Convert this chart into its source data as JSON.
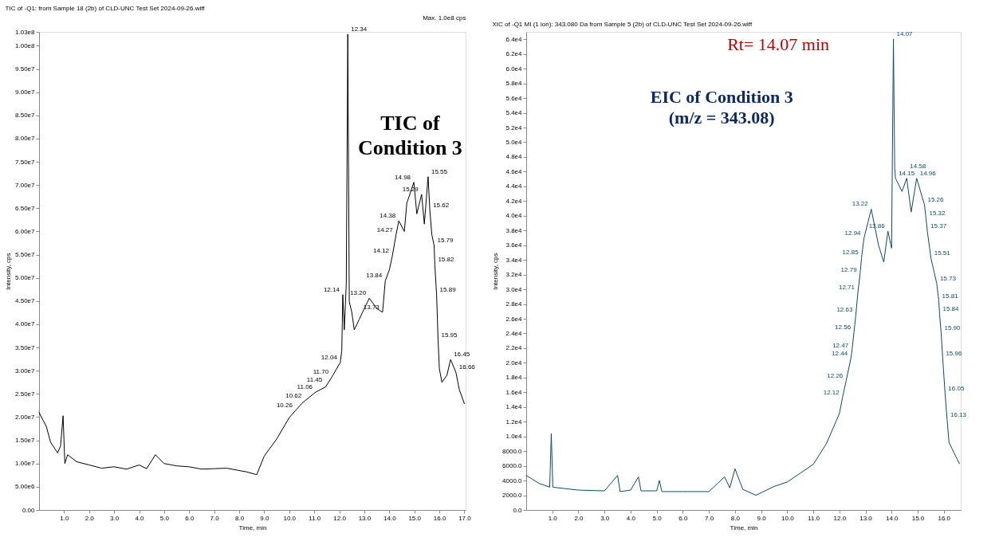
{
  "chart_data": [
    {
      "type": "line",
      "title": "TIC of -Q1: from Sample 18 (2b) of CLD-UNC Test Set 2024-09-26.wiff",
      "xlabel": "Time, min",
      "ylabel": "Intensity, cps",
      "x": [
        0,
        0.29,
        0.46,
        0.74,
        0.86,
        0.96,
        1.03,
        1.14,
        1.5,
        2.0,
        2.5,
        3.0,
        3.5,
        4.0,
        4.3,
        4.65,
        5.0,
        5.5,
        6.0,
        6.5,
        7.0,
        7.5,
        8.0,
        8.3,
        8.7,
        9.0,
        9.5,
        10.0,
        10.26,
        10.5,
        10.62,
        11.06,
        11.45,
        11.7,
        12.04,
        12.1,
        12.14,
        12.2,
        12.28,
        12.34,
        12.4,
        12.5,
        12.6,
        12.8,
        13.0,
        13.2,
        13.5,
        13.73,
        13.84,
        14.0,
        14.12,
        14.27,
        14.38,
        14.6,
        14.7,
        14.98,
        15.1,
        15.29,
        15.4,
        15.55,
        15.62,
        15.7,
        15.79,
        15.82,
        15.89,
        15.95,
        16.0,
        16.1,
        16.3,
        16.45,
        16.66,
        16.8,
        17.0
      ],
      "series": [
        {
          "color": "#000000",
          "values": [
            21000000,
            18000000,
            14600000,
            12300000,
            13800000,
            20300000,
            10000000,
            11900000,
            10400000,
            9700000,
            9000000,
            9300000,
            8800000,
            9700000,
            8900000,
            11900000,
            10000000,
            9500000,
            9300000,
            8800000,
            8900000,
            9000000,
            8500000,
            8200000,
            7600000,
            11600000,
            15300000,
            19900000,
            21500000,
            22900000,
            23500000,
            25400000,
            26500000,
            28600000,
            31800000,
            34300000,
            46400000,
            38800000,
            48700000,
            102500000,
            44900000,
            42600000,
            38800000,
            41100000,
            43400000,
            45600000,
            43400000,
            42600000,
            49400000,
            51700000,
            54700000,
            59300000,
            62300000,
            60000000,
            66100000,
            70600000,
            63800000,
            68000000,
            61600000,
            71800000,
            64600000,
            59300000,
            57000000,
            52800000,
            46400000,
            36600000,
            30500000,
            27500000,
            29000000,
            32400000,
            29700000,
            25900000,
            22900000
          ]
        }
      ],
      "xlim": [
        0,
        17.05
      ],
      "ylim": [
        0,
        103000000
      ],
      "xticks": [
        {
          "value": 1,
          "label": "1.0"
        },
        {
          "value": 2,
          "label": "2.0"
        },
        {
          "value": 3,
          "label": "3.0"
        },
        {
          "value": 4,
          "label": "4.0"
        },
        {
          "value": 5,
          "label": "5.0"
        },
        {
          "value": 6,
          "label": "6.0"
        },
        {
          "value": 7,
          "label": "7.0"
        },
        {
          "value": 8,
          "label": "8.0"
        },
        {
          "value": 9,
          "label": "9.0"
        },
        {
          "value": 10,
          "label": "10.0"
        },
        {
          "value": 11,
          "label": "11.0"
        },
        {
          "value": 12,
          "label": "12.0"
        },
        {
          "value": 13,
          "label": "13.0"
        },
        {
          "value": 14,
          "label": "14.0"
        },
        {
          "value": 15,
          "label": "15.0"
        },
        {
          "value": 16,
          "label": "16.0"
        },
        {
          "value": 17,
          "label": "17.0"
        }
      ],
      "yticks": [
        {
          "value": 0,
          "label": "0.00"
        },
        {
          "value": 5000000,
          "label": "5.00e6"
        },
        {
          "value": 10000000,
          "label": "1.00e7"
        },
        {
          "value": 15000000,
          "label": "1.50e7"
        },
        {
          "value": 20000000,
          "label": "2.00e7"
        },
        {
          "value": 25000000,
          "label": "2.50e7"
        },
        {
          "value": 30000000,
          "label": "3.00e7"
        },
        {
          "value": 35000000,
          "label": "3.50e7"
        },
        {
          "value": 40000000,
          "label": "4.00e7"
        },
        {
          "value": 45000000,
          "label": "4.50e7"
        },
        {
          "value": 50000000,
          "label": "5.00e7"
        },
        {
          "value": 55000000,
          "label": "5.50e7"
        },
        {
          "value": 60000000,
          "label": "6.00e7"
        },
        {
          "value": 65000000,
          "label": "6.50e7"
        },
        {
          "value": 70000000,
          "label": "7.00e7"
        },
        {
          "value": 75000000,
          "label": "7.50e7"
        },
        {
          "value": 80000000,
          "label": "8.00e7"
        },
        {
          "value": 85000000,
          "label": "8.50e7"
        },
        {
          "value": 90000000,
          "label": "9.00e7"
        },
        {
          "value": 95000000,
          "label": "9.50e7"
        },
        {
          "value": 100000000,
          "label": "1.00e8"
        },
        {
          "value": 103000000,
          "label": "1.03e8"
        }
      ],
      "grid": false,
      "legend": false,
      "marker": "none",
      "line_style": "solid",
      "annotations": [
        "TIC of\nCondition 3",
        "Max. 1.0e8 cps",
        {
          "text": "10.26",
          "x": 10.26,
          "y": 21500000
        },
        {
          "text": "10.62",
          "x": 10.62,
          "y": 23500000
        },
        {
          "text": "11.06",
          "x": 11.06,
          "y": 25400000
        },
        {
          "text": "11.45",
          "x": 11.45,
          "y": 26500000
        },
        {
          "text": "11.70",
          "x": 11.7,
          "y": 28600000
        },
        {
          "text": "12.04",
          "x": 12.04,
          "y": 31800000
        },
        {
          "text": "12.14",
          "x": 12.14,
          "y": 46400000
        },
        {
          "text": "12.34",
          "x": 12.34,
          "y": 102500000
        },
        {
          "text": "13.20",
          "x": 13.2,
          "y": 45600000
        },
        {
          "text": "13.73",
          "x": 13.73,
          "y": 42600000
        },
        {
          "text": "13.84",
          "x": 13.84,
          "y": 49400000
        },
        {
          "text": "14.12",
          "x": 14.12,
          "y": 54700000
        },
        {
          "text": "14.27",
          "x": 14.27,
          "y": 59300000
        },
        {
          "text": "14.38",
          "x": 14.38,
          "y": 62300000
        },
        {
          "text": "14.98",
          "x": 14.98,
          "y": 70600000
        },
        {
          "text": "15.29",
          "x": 15.29,
          "y": 68000000
        },
        {
          "text": "15.55",
          "x": 15.55,
          "y": 71800000
        },
        {
          "text": "15.62",
          "x": 15.62,
          "y": 64600000
        },
        {
          "text": "15.79",
          "x": 15.79,
          "y": 57000000
        },
        {
          "text": "15.82",
          "x": 15.82,
          "y": 52800000
        },
        {
          "text": "15.89",
          "x": 15.89,
          "y": 46400000
        },
        {
          "text": "15.95",
          "x": 15.95,
          "y": 36600000
        },
        {
          "text": "16.45",
          "x": 16.45,
          "y": 32400000
        },
        {
          "text": "16.66",
          "x": 16.66,
          "y": 29700000
        }
      ]
    },
    {
      "type": "line",
      "title": "XIC of -Q1 MI (1 ion): 343.080 Da from Sample 5 (2b) of CLD-UNC Test Set 2024-09-26.wiff",
      "xlabel": "Time, min",
      "ylabel": "Intensity, cps",
      "x": [
        0,
        0.5,
        0.9,
        0.96,
        1.02,
        1.5,
        2.0,
        3.0,
        3.5,
        3.6,
        4.0,
        4.3,
        4.4,
        5.0,
        5.1,
        5.2,
        6.0,
        7.0,
        7.6,
        7.8,
        8.0,
        8.3,
        8.8,
        9.5,
        10.0,
        10.5,
        11.0,
        11.5,
        12.0,
        12.12,
        12.26,
        12.44,
        12.47,
        12.56,
        12.63,
        12.71,
        12.79,
        12.85,
        12.94,
        13.22,
        13.5,
        13.7,
        13.86,
        14.0,
        14.07,
        14.12,
        14.15,
        14.4,
        14.58,
        14.75,
        14.96,
        15.26,
        15.32,
        15.37,
        15.51,
        15.73,
        15.81,
        15.84,
        15.9,
        15.96,
        16.05,
        16.13,
        16.2,
        16.4,
        16.6
      ],
      "series": [
        {
          "color": "#0b4a6b",
          "values": [
            4700,
            3600,
            3100,
            10400,
            3100,
            2900,
            2700,
            2600,
            4700,
            2500,
            2700,
            4500,
            2600,
            2600,
            4000,
            2500,
            2500,
            2500,
            4500,
            3000,
            5600,
            2800,
            2000,
            3200,
            3800,
            5000,
            6200,
            9000,
            13100,
            15300,
            17600,
            20600,
            21300,
            24200,
            26500,
            29600,
            32000,
            34300,
            36900,
            40900,
            36000,
            33700,
            37900,
            35600,
            64000,
            46400,
            45100,
            43300,
            45100,
            40500,
            45100,
            41500,
            39600,
            37900,
            34200,
            30800,
            28400,
            26600,
            24000,
            20600,
            15800,
            12200,
            9200,
            7700,
            6300
          ]
        }
      ],
      "xlim": [
        0,
        16.65
      ],
      "ylim": [
        0,
        65000
      ],
      "xticks": [
        {
          "value": 1,
          "label": "1.0"
        },
        {
          "value": 2,
          "label": "2.0"
        },
        {
          "value": 3,
          "label": "3.0"
        },
        {
          "value": 4,
          "label": "4.0"
        },
        {
          "value": 5,
          "label": "5.0"
        },
        {
          "value": 6,
          "label": "6.0"
        },
        {
          "value": 7,
          "label": "7.0"
        },
        {
          "value": 8,
          "label": "8.0"
        },
        {
          "value": 9,
          "label": "9.0"
        },
        {
          "value": 10,
          "label": "10.0"
        },
        {
          "value": 11,
          "label": "11.0"
        },
        {
          "value": 12,
          "label": "12.0"
        },
        {
          "value": 13,
          "label": "13.0"
        },
        {
          "value": 14,
          "label": "14.0"
        },
        {
          "value": 15,
          "label": "15.0"
        },
        {
          "value": 16,
          "label": "16.0"
        }
      ],
      "yticks": [
        {
          "value": 0,
          "label": "0.0"
        },
        {
          "value": 2000,
          "label": "2000.0"
        },
        {
          "value": 4000,
          "label": "4000.0"
        },
        {
          "value": 6000,
          "label": "6000.0"
        },
        {
          "value": 8000,
          "label": "8000.0"
        },
        {
          "value": 10000,
          "label": "1.0e4"
        },
        {
          "value": 12000,
          "label": "1.2e4"
        },
        {
          "value": 14000,
          "label": "1.4e4"
        },
        {
          "value": 16000,
          "label": "1.6e4"
        },
        {
          "value": 18000,
          "label": "1.8e4"
        },
        {
          "value": 20000,
          "label": "2.0e4"
        },
        {
          "value": 22000,
          "label": "2.2e4"
        },
        {
          "value": 24000,
          "label": "2.4e4"
        },
        {
          "value": 26000,
          "label": "2.6e4"
        },
        {
          "value": 28000,
          "label": "2.8e4"
        },
        {
          "value": 30000,
          "label": "3.0e4"
        },
        {
          "value": 32000,
          "label": "3.2e4"
        },
        {
          "value": 34000,
          "label": "3.4e4"
        },
        {
          "value": 36000,
          "label": "3.6e4"
        },
        {
          "value": 38000,
          "label": "3.8e4"
        },
        {
          "value": 40000,
          "label": "4.0e4"
        },
        {
          "value": 42000,
          "label": "4.2e4"
        },
        {
          "value": 44000,
          "label": "4.4e4"
        },
        {
          "value": 46000,
          "label": "4.6e4"
        },
        {
          "value": 48000,
          "label": "4.8e4"
        },
        {
          "value": 50000,
          "label": "5.0e4"
        },
        {
          "value": 52000,
          "label": "5.2e4"
        },
        {
          "value": 54000,
          "label": "5.4e4"
        },
        {
          "value": 56000,
          "label": "5.6e4"
        },
        {
          "value": 58000,
          "label": "5.8e4"
        },
        {
          "value": 60000,
          "label": "6.0e4"
        },
        {
          "value": 62000,
          "label": "6.2e4"
        },
        {
          "value": 64000,
          "label": "6.4e4"
        }
      ],
      "grid": false,
      "legend": false,
      "marker": "none",
      "line_style": "solid",
      "annotations": [
        "EIC of Condition 3\n(m/z = 343.08)",
        "Rt= 14.07 min",
        {
          "text": "12.12",
          "x": 12.12,
          "y": 15300
        },
        {
          "text": "12.26",
          "x": 12.26,
          "y": 17600
        },
        {
          "text": "12.44",
          "x": 12.44,
          "y": 20600
        },
        {
          "text": "12.47",
          "x": 12.47,
          "y": 21300
        },
        {
          "text": "12.56",
          "x": 12.56,
          "y": 24200
        },
        {
          "text": "12.63",
          "x": 12.63,
          "y": 26500
        },
        {
          "text": "12.71",
          "x": 12.71,
          "y": 29600
        },
        {
          "text": "12.79",
          "x": 12.79,
          "y": 32000
        },
        {
          "text": "12.85",
          "x": 12.85,
          "y": 34300
        },
        {
          "text": "12.94",
          "x": 12.94,
          "y": 36900
        },
        {
          "text": "13.22",
          "x": 13.22,
          "y": 40900
        },
        {
          "text": "13.86",
          "x": 13.86,
          "y": 37900
        },
        {
          "text": "14.07",
          "x": 14.07,
          "y": 64000
        },
        {
          "text": "14.15",
          "x": 14.15,
          "y": 45100
        },
        {
          "text": "14.58",
          "x": 14.58,
          "y": 45100
        },
        {
          "text": "14.96",
          "x": 14.96,
          "y": 45100
        },
        {
          "text": "15.26",
          "x": 15.26,
          "y": 41500
        },
        {
          "text": "15.32",
          "x": 15.32,
          "y": 39600
        },
        {
          "text": "15.37",
          "x": 15.37,
          "y": 37900
        },
        {
          "text": "15.51",
          "x": 15.51,
          "y": 34200
        },
        {
          "text": "15.73",
          "x": 15.73,
          "y": 30800
        },
        {
          "text": "15.81",
          "x": 15.81,
          "y": 28400
        },
        {
          "text": "15.84",
          "x": 15.84,
          "y": 26600
        },
        {
          "text": "15.90",
          "x": 15.9,
          "y": 24000
        },
        {
          "text": "15.96",
          "x": 15.96,
          "y": 20600
        },
        {
          "text": "16.05",
          "x": 16.05,
          "y": 15800
        },
        {
          "text": "16.13",
          "x": 16.13,
          "y": 12200
        }
      ]
    }
  ]
}
